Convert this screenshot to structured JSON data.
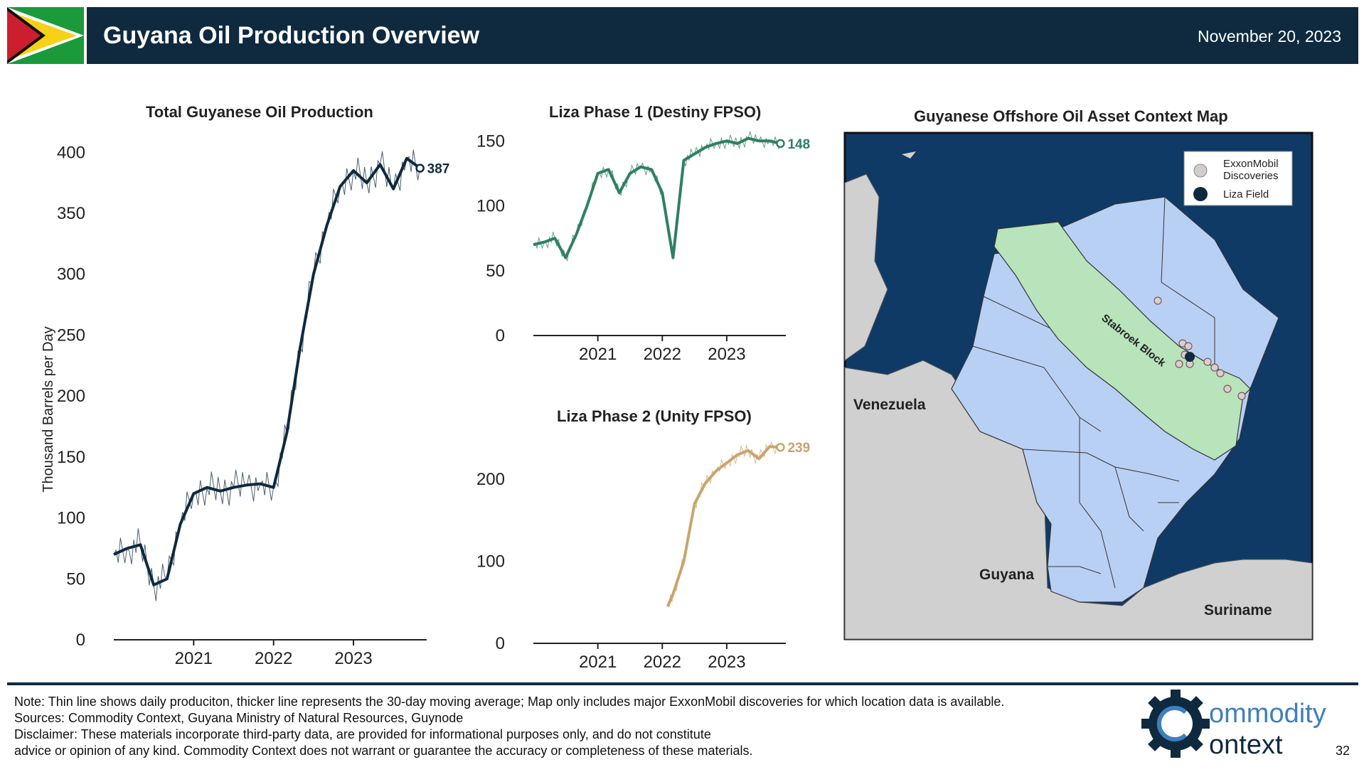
{
  "header": {
    "title": "Guyana Oil Production Overview",
    "date": "November 20, 2023"
  },
  "colors": {
    "header_bg": "#0f2a3f",
    "total_line": "#0f2a3f",
    "phase1_line": "#2e8060",
    "phase2_line": "#c9a46e",
    "ocean": "#0f3a66",
    "blocks": "#b9d0f5",
    "stabroek": "#b8e3bb",
    "land": "#d0d0d0"
  },
  "chart_data": [
    {
      "type": "line",
      "title": "Total Guyanese Oil Production",
      "ylabel": "Thousand Barrels per Day",
      "ylim": [
        0,
        420
      ],
      "yticks": [
        "0",
        "50",
        "100",
        "150",
        "200",
        "250",
        "300",
        "350",
        "400"
      ],
      "xticks": [
        "2021",
        "2022",
        "2023"
      ],
      "end_label": "387",
      "series": [
        {
          "x": [
            "2020-01",
            "2020-03",
            "2020-05",
            "2020-07",
            "2020-09",
            "2020-11",
            "2021-01",
            "2021-03",
            "2021-05",
            "2021-07",
            "2021-09",
            "2021-11",
            "2022-01",
            "2022-03",
            "2022-05",
            "2022-07",
            "2022-09",
            "2022-11",
            "2023-01",
            "2023-03",
            "2023-05",
            "2023-07",
            "2023-09",
            "2023-11"
          ],
          "y": [
            70,
            75,
            78,
            45,
            50,
            95,
            120,
            125,
            122,
            125,
            127,
            128,
            125,
            170,
            240,
            300,
            340,
            372,
            385,
            375,
            390,
            370,
            395,
            387
          ]
        }
      ]
    },
    {
      "type": "line",
      "title": "Liza Phase 1 (Destiny FPSO)",
      "ylim": [
        0,
        160
      ],
      "yticks": [
        "0",
        "50",
        "100",
        "150"
      ],
      "xticks": [
        "2021",
        "2022",
        "2023"
      ],
      "end_label": "148",
      "series": [
        {
          "x": [
            "2020-01",
            "2020-03",
            "2020-05",
            "2020-07",
            "2020-09",
            "2020-11",
            "2021-01",
            "2021-03",
            "2021-05",
            "2021-07",
            "2021-09",
            "2021-11",
            "2022-01",
            "2022-03",
            "2022-05",
            "2022-07",
            "2022-09",
            "2022-11",
            "2023-01",
            "2023-03",
            "2023-05",
            "2023-07",
            "2023-09",
            "2023-11"
          ],
          "y": [
            70,
            72,
            75,
            60,
            78,
            100,
            125,
            128,
            110,
            125,
            130,
            128,
            110,
            60,
            135,
            140,
            145,
            148,
            150,
            148,
            152,
            150,
            150,
            148
          ]
        }
      ]
    },
    {
      "type": "line",
      "title": "Liza Phase 2 (Unity FPSO)",
      "ylim": [
        0,
        260
      ],
      "yticks": [
        "0",
        "100",
        "200"
      ],
      "xticks": [
        "2021",
        "2022",
        "2023"
      ],
      "end_label": "239",
      "series": [
        {
          "x": [
            "2022-02",
            "2022-03",
            "2022-05",
            "2022-07",
            "2022-09",
            "2022-11",
            "2023-01",
            "2023-03",
            "2023-05",
            "2023-07",
            "2023-09",
            "2023-11"
          ],
          "y": [
            45,
            60,
            100,
            170,
            195,
            210,
            220,
            230,
            235,
            225,
            240,
            239
          ]
        }
      ]
    }
  ],
  "map": {
    "title": "Guyanese Offshore Oil Asset Context Map",
    "labels": {
      "venezuela": "Venezuela",
      "guyana": "Guyana",
      "suriname": "Suriname",
      "stabroek": "Stabroek Block"
    },
    "legend": {
      "discoveries": "ExxonMobil Discoveries",
      "liza": "Liza Field"
    }
  },
  "footer": {
    "note": "Note: Thin line shows daily produciton, thicker line represents the 30-day moving average; Map only includes major ExxonMobil discoveries for which location data is available.",
    "sources": "Sources: Commodity Context, Guyana Ministry of Natural Resources, Guynode",
    "disclaimer1": "Disclaimer: These materials incorporate third-party data, are provided for informational purposes only, and do not constitute",
    "disclaimer2": "advice or opinion of any kind. Commodity Context does not warrant or guarantee the accuracy or completeness of these materials."
  },
  "logo": {
    "line1": "ommodity",
    "line2": "ontext"
  },
  "page_number": "32"
}
